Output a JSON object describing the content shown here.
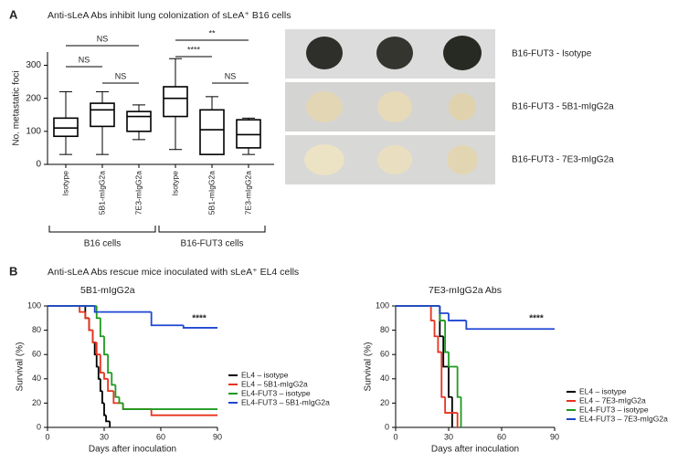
{
  "panel_labels": [
    "A",
    "B"
  ],
  "panel_titles": [
    "Anti-sLeA Abs inhibit lung colonization of sLeA⁺ B16 cells",
    "Anti-sLeA Abs rescue mice inoculated with sLeA⁺ EL4 cells"
  ],
  "image_labels": [
    "B16-FUT3 - Isotype",
    "B16-FUT3 - 5B1-mIgG2a",
    "B16-FUT3 - 7E3-mIgG2a"
  ],
  "chart_data": [
    {
      "type": "box",
      "y_label": "No. metastatic foci",
      "categories": [
        "Isotype",
        "5B1-mIgG2a",
        "7E3-mIgG2a",
        "Isotype",
        "5B1-mIgG2a",
        "7E3-mIgG2a"
      ],
      "groups": [
        "B16 cells",
        "B16-FUT3 cells"
      ],
      "boxes": [
        {
          "whisker_low": 30,
          "q1": 85,
          "median": 110,
          "q3": 140,
          "whisker_high": 220
        },
        {
          "whisker_low": 30,
          "q1": 115,
          "median": 165,
          "q3": 185,
          "whisker_high": 220
        },
        {
          "whisker_low": 75,
          "q1": 100,
          "median": 145,
          "q3": 160,
          "whisker_high": 180
        },
        {
          "whisker_low": 45,
          "q1": 145,
          "median": 200,
          "q3": 235,
          "whisker_high": 320
        },
        {
          "whisker_low": 30,
          "q1": 30,
          "median": 105,
          "q3": 165,
          "whisker_high": 205
        },
        {
          "whisker_low": 30,
          "q1": 50,
          "median": 90,
          "q3": 135,
          "whisker_high": 140
        }
      ],
      "significance": [
        "NS",
        "NS",
        "NS",
        "**",
        "****",
        "NS"
      ],
      "ylim": [
        0,
        340
      ],
      "yticks": [
        0,
        100,
        200,
        300
      ]
    },
    {
      "type": "survival",
      "title": "5B1-mIgG2a",
      "x_label": "Days after inoculation",
      "y_label": "Survival (%)",
      "annotation": "****",
      "xlim": [
        0,
        90
      ],
      "xticks": [
        0,
        30,
        60,
        90
      ],
      "ylim": [
        0,
        100
      ],
      "yticks": [
        0,
        20,
        40,
        60,
        80,
        100
      ],
      "series": [
        {
          "name": "EL4 – isotype",
          "color": "#000000",
          "x": [
            0,
            20,
            22,
            24,
            25,
            26,
            27,
            28,
            29,
            30,
            31,
            33
          ],
          "values": [
            100,
            90,
            80,
            70,
            60,
            50,
            40,
            30,
            20,
            10,
            5,
            0
          ]
        },
        {
          "name": "EL4 – 5B1-mIgG2a",
          "color": "#e8321e",
          "x": [
            0,
            17,
            20,
            22,
            24,
            26,
            28,
            30,
            32,
            35,
            40,
            55,
            90
          ],
          "values": [
            100,
            95,
            90,
            80,
            70,
            60,
            45,
            40,
            30,
            20,
            15,
            10,
            10
          ]
        },
        {
          "name": "EL4-FUT3 – isotype",
          "color": "#1e9a1e",
          "x": [
            0,
            26,
            28,
            30,
            32,
            34,
            36,
            38,
            40,
            90
          ],
          "values": [
            100,
            90,
            75,
            60,
            45,
            35,
            25,
            20,
            15,
            15
          ]
        },
        {
          "name": "EL4-FUT3 – 5B1-mIgG2a",
          "color": "#1e46d2",
          "x": [
            0,
            25,
            28,
            55,
            72,
            90
          ],
          "values": [
            100,
            95,
            95,
            84,
            82,
            82
          ]
        }
      ]
    },
    {
      "type": "survival",
      "title": "7E3-mIgG2a Abs",
      "x_label": "Days after inoculation",
      "y_label": "Survival (%)",
      "annotation": "****",
      "xlim": [
        0,
        90
      ],
      "xticks": [
        0,
        30,
        60,
        90
      ],
      "ylim": [
        0,
        100
      ],
      "yticks": [
        0,
        20,
        40,
        60,
        80,
        100
      ],
      "series": [
        {
          "name": "EL4 – isotype",
          "color": "#000000",
          "x": [
            0,
            25,
            27,
            30,
            32
          ],
          "values": [
            100,
            75,
            50,
            25,
            0
          ]
        },
        {
          "name": "EL4 – 7E3-mIgG2a",
          "color": "#e8321e",
          "x": [
            0,
            20,
            22,
            24,
            26,
            28,
            35
          ],
          "values": [
            100,
            88,
            75,
            62,
            25,
            12,
            0
          ]
        },
        {
          "name": "EL4-FUT3 – isotype",
          "color": "#1e9a1e",
          "x": [
            0,
            25,
            28,
            30,
            32,
            35,
            37
          ],
          "values": [
            100,
            88,
            62,
            50,
            50,
            25,
            0
          ]
        },
        {
          "name": "EL4-FUT3 – 7E3-mIgG2a",
          "color": "#1e46d2",
          "x": [
            0,
            25,
            30,
            40,
            90
          ],
          "values": [
            100,
            94,
            88,
            81,
            81
          ]
        }
      ]
    }
  ]
}
